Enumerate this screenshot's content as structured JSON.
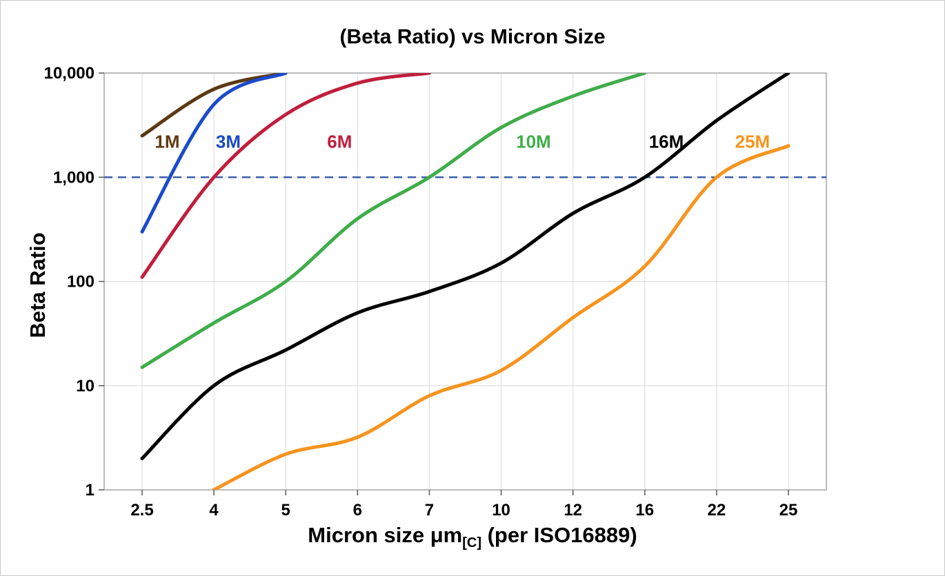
{
  "chart_data": {
    "type": "line",
    "title": "(Beta Ratio) vs Micron Size",
    "ylabel": "Beta Ratio",
    "xlabel_prefix": "Micron size μm",
    "xlabel_subscript": "[C]",
    "xlabel_suffix": " (per ISO16889)",
    "x_axis_type": "categorical",
    "y_axis_type": "log",
    "grid": true,
    "categories": [
      "2.5",
      "4",
      "5",
      "6",
      "7",
      "10",
      "12",
      "16",
      "22",
      "25"
    ],
    "ylim": [
      1,
      10000
    ],
    "y_ticks": [
      {
        "value": 1,
        "label": "1"
      },
      {
        "value": 10,
        "label": "10"
      },
      {
        "value": 100,
        "label": "100"
      },
      {
        "value": 1000,
        "label": "1,000"
      },
      {
        "value": 10000,
        "label": "10,000"
      }
    ],
    "reference_line": {
      "value": 1000,
      "color": "#3c5fa8",
      "style": "dashed"
    },
    "series": [
      {
        "name": "1M",
        "color": "#5c3a14",
        "values": [
          2500,
          7000,
          10000,
          null,
          null,
          null,
          null,
          null,
          null,
          null
        ],
        "label_pos": {
          "xi": 0.35,
          "y": 2200
        }
      },
      {
        "name": "3M",
        "color": "#1b4acb",
        "values": [
          300,
          5000,
          10000,
          null,
          null,
          null,
          null,
          null,
          null,
          null
        ],
        "label_pos": {
          "xi": 1.2,
          "y": 2200
        }
      },
      {
        "name": "6M",
        "color": "#c01e3c",
        "values": [
          110,
          1000,
          4000,
          8000,
          10000,
          null,
          null,
          null,
          null,
          null
        ],
        "label_pos": {
          "xi": 2.75,
          "y": 2200
        }
      },
      {
        "name": "10M",
        "color": "#3fad4a",
        "values": [
          15,
          40,
          100,
          400,
          1000,
          3000,
          6000,
          10000,
          null,
          null
        ],
        "label_pos": {
          "xi": 5.45,
          "y": 2200
        }
      },
      {
        "name": "16M",
        "color": "#000000",
        "values": [
          2,
          10,
          22,
          50,
          80,
          150,
          450,
          1000,
          3500,
          10000
        ],
        "label_pos": {
          "xi": 7.3,
          "y": 2200
        }
      },
      {
        "name": "25M",
        "color": "#f7941e",
        "values": [
          null,
          1,
          2.2,
          3.2,
          8,
          14,
          45,
          140,
          1000,
          2000
        ],
        "label_pos": {
          "xi": 8.5,
          "y": 2200
        }
      }
    ],
    "style": {
      "grid_color": "#d9d9d9",
      "border_color": "#a6a6a6",
      "tick_color": "#595959",
      "tick_label_color": "#000000",
      "line_width": 5
    }
  }
}
